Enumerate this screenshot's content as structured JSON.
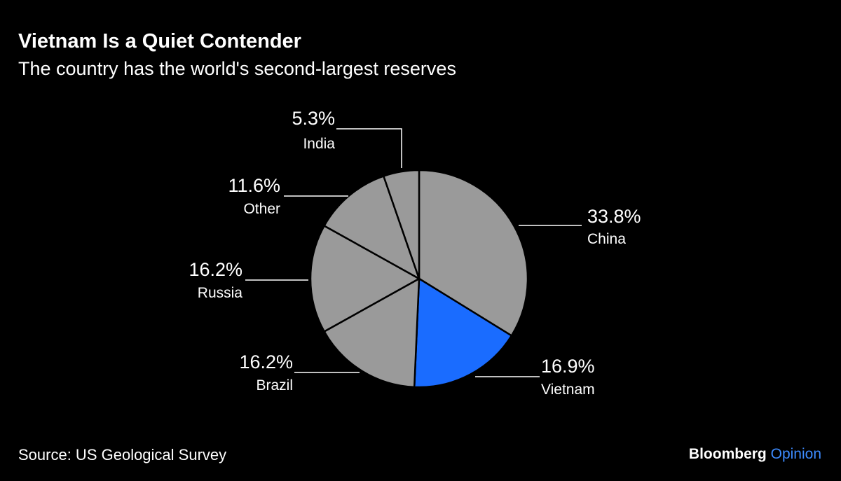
{
  "chart_data": {
    "type": "pie",
    "title": "Vietnam Is a Quiet Contender",
    "subtitle": "The country has the world's second-largest reserves",
    "categories": [
      "China",
      "Vietnam",
      "Brazil",
      "Russia",
      "Other",
      "India"
    ],
    "values": [
      33.8,
      16.9,
      16.2,
      16.2,
      11.6,
      5.3
    ],
    "value_labels": [
      "33.8%",
      "16.9%",
      "16.2%",
      "16.2%",
      "11.6%",
      "5.3%"
    ],
    "colors": [
      "#9a9a9a",
      "#1a6cff",
      "#9a9a9a",
      "#9a9a9a",
      "#9a9a9a",
      "#9a9a9a"
    ],
    "source": "Source: US Geological Survey",
    "brand": {
      "name": "Bloomberg",
      "product": "Opinion"
    }
  }
}
